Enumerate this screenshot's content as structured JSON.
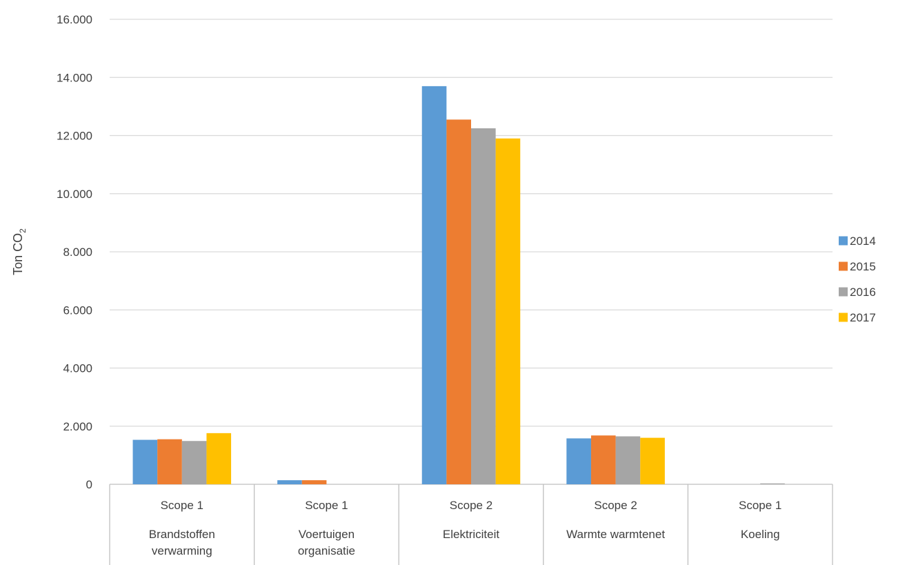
{
  "chart_data": {
    "type": "bar",
    "title": "",
    "xlabel": "",
    "ylabel": "Ton CO",
    "ylabel_subscript": "2",
    "ylim": [
      0,
      16000
    ],
    "y_ticks": [
      0,
      2000,
      4000,
      6000,
      8000,
      10000,
      12000,
      14000,
      16000
    ],
    "y_tick_labels": [
      "0",
      "2.000",
      "4.000",
      "6.000",
      "8.000",
      "10.000",
      "12.000",
      "14.000",
      "16.000"
    ],
    "grid": true,
    "legend_position": "right",
    "categories": [
      {
        "scope": "Scope 1",
        "label": [
          "Brandstoffen",
          "verwarming"
        ]
      },
      {
        "scope": "Scope 1",
        "label": [
          "Voertuigen",
          "organisatie"
        ]
      },
      {
        "scope": "Scope 2",
        "label": [
          "Elektriciteit"
        ]
      },
      {
        "scope": "Scope 2",
        "label": [
          "Warmte warmtenet"
        ]
      },
      {
        "scope": "Scope 1",
        "label": [
          "Koeling"
        ]
      }
    ],
    "series": [
      {
        "name": "2014",
        "color": "#5B9BD5",
        "values": [
          1530,
          140,
          13700,
          1580,
          0
        ]
      },
      {
        "name": "2015",
        "color": "#ED7D31",
        "values": [
          1550,
          140,
          12550,
          1680,
          0
        ]
      },
      {
        "name": "2016",
        "color": "#A5A5A5",
        "values": [
          1490,
          0,
          12250,
          1650,
          30
        ]
      },
      {
        "name": "2017",
        "color": "#FFC000",
        "values": [
          1760,
          0,
          11900,
          1600,
          0
        ]
      }
    ]
  }
}
